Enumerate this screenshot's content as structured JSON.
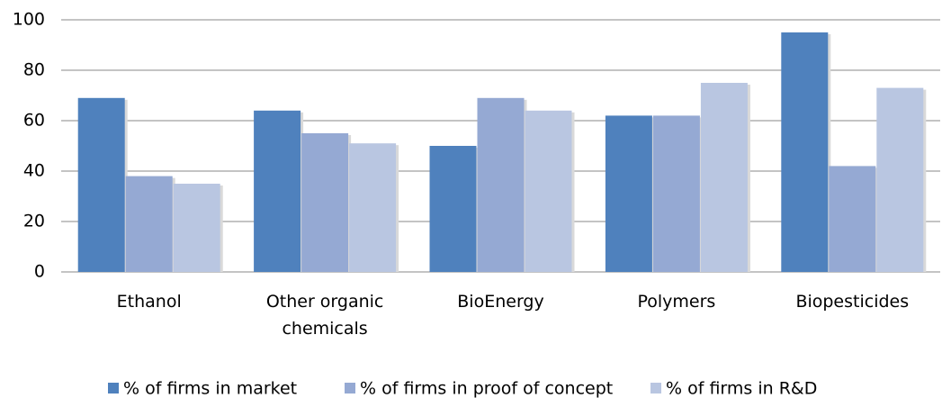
{
  "chart_data": {
    "type": "bar",
    "categories": [
      "Ethanol",
      "Other organic chemicals",
      "BioEnergy",
      "Polymers",
      "Biopesticides"
    ],
    "series": [
      {
        "name": "% of firms in market",
        "color": "#4f81bd",
        "values": [
          69,
          64,
          50,
          62,
          95
        ]
      },
      {
        "name": "% of firms in proof of concept",
        "color": "#95a9d3",
        "values": [
          38,
          55,
          69,
          62,
          42
        ]
      },
      {
        "name": "% of firms in R&D",
        "color": "#b9c6e1",
        "values": [
          35,
          51,
          64,
          75,
          73
        ]
      }
    ],
    "ylim": [
      0,
      100
    ],
    "yticks": [
      0,
      20,
      40,
      60,
      80,
      100
    ],
    "grid": true,
    "legend": "bottom"
  }
}
